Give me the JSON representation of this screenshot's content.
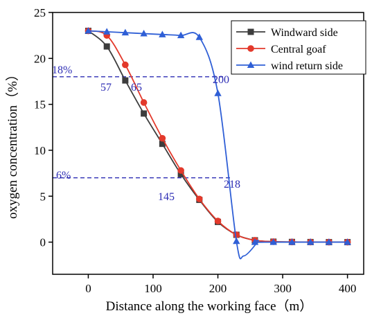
{
  "chart_data": {
    "type": "line",
    "xlabel": "Distance along the working face（m）",
    "ylabel": "oxygen concentration（%）",
    "xlim": [
      -55,
      425
    ],
    "ylim": [
      -3.5,
      25
    ],
    "xticks": [
      "0",
      "100",
      "200",
      "300",
      "400"
    ],
    "xtick_values": [
      0,
      100,
      200,
      300,
      400
    ],
    "yticks": [
      "0",
      "5",
      "10",
      "15",
      "20",
      "25"
    ],
    "ytick_values": [
      0,
      5,
      10,
      15,
      20,
      25
    ],
    "legend_position": "top-right",
    "series": [
      {
        "name": "Windward side",
        "color": "#3d3d3d",
        "marker": "square",
        "x": [
          0,
          28.6,
          57.1,
          85.7,
          114.3,
          142.9,
          171.4,
          200,
          228.6,
          257.1,
          285.7,
          314.3,
          342.9,
          371.4,
          400
        ],
        "y": [
          23,
          21.3,
          17.6,
          14.0,
          10.7,
          7.4,
          4.6,
          2.2,
          0.8,
          0.2,
          0.05,
          0.02,
          0.01,
          0.0,
          0.0
        ]
      },
      {
        "name": "Central goaf",
        "color": "#e3392b",
        "marker": "circle",
        "x": [
          0,
          28.6,
          57.1,
          85.7,
          114.3,
          142.9,
          171.4,
          200,
          228.6,
          257.1,
          285.7,
          314.3,
          342.9,
          371.4,
          400
        ],
        "y": [
          23,
          22.5,
          19.3,
          15.2,
          11.3,
          7.8,
          4.7,
          2.3,
          0.8,
          0.2,
          0.05,
          0.02,
          0.01,
          0.0,
          0.0
        ]
      },
      {
        "name": "wind return side",
        "color": "#2f5fd6",
        "marker": "triangle",
        "x": [
          0,
          28.6,
          57.1,
          85.7,
          114.3,
          142.9,
          171.4,
          200,
          228.6,
          257.1,
          285.7,
          314.3,
          342.9,
          371.4,
          400
        ],
        "y": [
          23,
          22.9,
          22.8,
          22.7,
          22.6,
          22.5,
          22.3,
          16.2,
          0.1,
          0.0,
          0.0,
          0.0,
          0.0,
          0.0,
          0.0
        ]
      }
    ],
    "reference_lines": [
      {
        "y": 18,
        "label": "18%",
        "x_points": [
          "57",
          "65",
          "200"
        ]
      },
      {
        "y": 6,
        "label": "6%",
        "x_points": [
          "145",
          "218"
        ]
      }
    ],
    "annotations": {
      "label_18": "18%",
      "label_6": "6%",
      "label_57": "57",
      "label_65": "65",
      "label_200": "200",
      "label_145": "145",
      "label_218": "218"
    },
    "annotation_color": "#2d2db4"
  }
}
